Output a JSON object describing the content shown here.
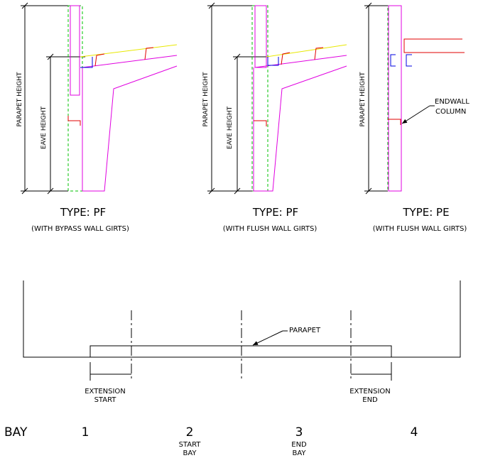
{
  "details": [
    {
      "parapet_label": "PARAPET HEIGHT",
      "eave_label": "EAVE HEIGHT",
      "type": "TYPE:  PF",
      "subtitle": "(WITH BYPASS WALL GIRTS)"
    },
    {
      "parapet_label": "PARAPET HEIGHT",
      "eave_label": "EAVE HEIGHT",
      "type": "TYPE:  PF",
      "subtitle": "(WITH FLUSH WALL GIRTS)"
    },
    {
      "parapet_label": "PARAPET HEIGHT",
      "type": "TYPE:  PE",
      "subtitle": "(WITH FLUSH WALL GIRTS)",
      "callout_line1": "ENDWALL",
      "callout_line2": "COLUMN"
    }
  ],
  "plan": {
    "parapet_label": "PARAPET",
    "ext_start_line1": "EXTENSION",
    "ext_start_line2": "START",
    "ext_end_line1": "EXTENSION",
    "ext_end_line2": "END"
  },
  "bays": {
    "label": "BAY",
    "items": [
      {
        "num": "1"
      },
      {
        "num": "2",
        "sub1": "START",
        "sub2": "BAY"
      },
      {
        "num": "3",
        "sub1": "END",
        "sub2": "BAY"
      },
      {
        "num": "4"
      }
    ]
  },
  "colors": {
    "line": "#000000",
    "frame": "#e000e0",
    "girt": "#e00000",
    "column_outline": "#00c000",
    "roof_slope": "#e8e800",
    "clip": "#0000e0"
  }
}
